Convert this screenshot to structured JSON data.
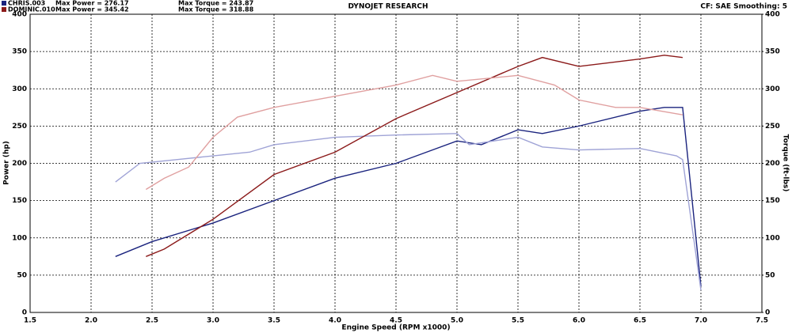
{
  "chart_data": {
    "type": "line",
    "title": "DYNOJET RESEARCH",
    "settings_text": "CF: SAE  Smoothing: 5",
    "legend": [
      {
        "run": "CHRIS.003",
        "power": "Max Power = 276.17",
        "torque": "Max Torque = 243.87",
        "color": "#1a237e"
      },
      {
        "run": "DOMINIC.010",
        "power": "Max Power = 345.42",
        "torque": "Max Torque = 318.88",
        "color": "#8b1a1a"
      }
    ],
    "x_label": "Engine Speed (RPM x1000)",
    "y_label": "Power (hp)",
    "y2_label": "Torque (ft-lbs)",
    "xlim": [
      1.5,
      7.5
    ],
    "xticks": [
      {
        "value": 1.5,
        "label": "1.5"
      },
      {
        "value": 2,
        "label": "2.0"
      },
      {
        "value": 2.5,
        "label": "2.5"
      },
      {
        "value": 3,
        "label": "3.0"
      },
      {
        "value": 3.5,
        "label": "3.5"
      },
      {
        "value": 4,
        "label": "4.0"
      },
      {
        "value": 4.5,
        "label": "4.5"
      },
      {
        "value": 5,
        "label": "5.0"
      },
      {
        "value": 5.5,
        "label": "5.5"
      },
      {
        "value": 6,
        "label": "6.0"
      },
      {
        "value": 6.5,
        "label": "6.5"
      },
      {
        "value": 7,
        "label": "7.0"
      },
      {
        "value": 7.5,
        "label": "7.5"
      }
    ],
    "ylim": [
      0,
      400
    ],
    "yticks": [
      0,
      50,
      100,
      150,
      200,
      250,
      300,
      350,
      400
    ],
    "y2lim": [
      0,
      400
    ],
    "y2ticks": [
      0,
      50,
      100,
      150,
      200,
      250,
      300,
      350,
      400
    ],
    "grid": true,
    "series": [
      {
        "color": "#1a237e",
        "axis": "y",
        "x": [
          2.2,
          2.5,
          3.0,
          3.5,
          4.0,
          4.5,
          5.0,
          5.2,
          5.5,
          5.7,
          6.0,
          6.5,
          6.7,
          6.85,
          7.0
        ],
        "values": [
          75,
          95,
          120,
          150,
          180,
          200,
          230,
          225,
          245,
          240,
          250,
          270,
          275,
          275,
          35
        ]
      },
      {
        "color": "#9fa3d6",
        "axis": "y2",
        "x": [
          2.2,
          2.4,
          2.7,
          3.0,
          3.3,
          3.5,
          4.0,
          4.5,
          5.0,
          5.1,
          5.5,
          5.7,
          6.0,
          6.5,
          6.8,
          6.85,
          7.0
        ],
        "values": [
          175,
          200,
          205,
          210,
          215,
          225,
          235,
          238,
          240,
          225,
          235,
          222,
          218,
          220,
          210,
          205,
          30
        ]
      },
      {
        "color": "#8b1a1a",
        "axis": "y",
        "x": [
          2.45,
          2.6,
          3.0,
          3.5,
          4.0,
          4.5,
          5.0,
          5.5,
          5.7,
          6.0,
          6.5,
          6.7,
          6.85
        ],
        "values": [
          75,
          85,
          125,
          185,
          215,
          260,
          295,
          330,
          342,
          330,
          340,
          345,
          342
        ]
      },
      {
        "color": "#e0a0a0",
        "axis": "y2",
        "x": [
          2.45,
          2.6,
          2.8,
          3.0,
          3.2,
          3.5,
          4.0,
          4.5,
          4.8,
          5.0,
          5.5,
          5.8,
          6.0,
          6.3,
          6.5,
          6.85
        ],
        "values": [
          165,
          180,
          195,
          235,
          262,
          275,
          290,
          305,
          318,
          310,
          318,
          305,
          285,
          275,
          275,
          265
        ]
      }
    ]
  }
}
